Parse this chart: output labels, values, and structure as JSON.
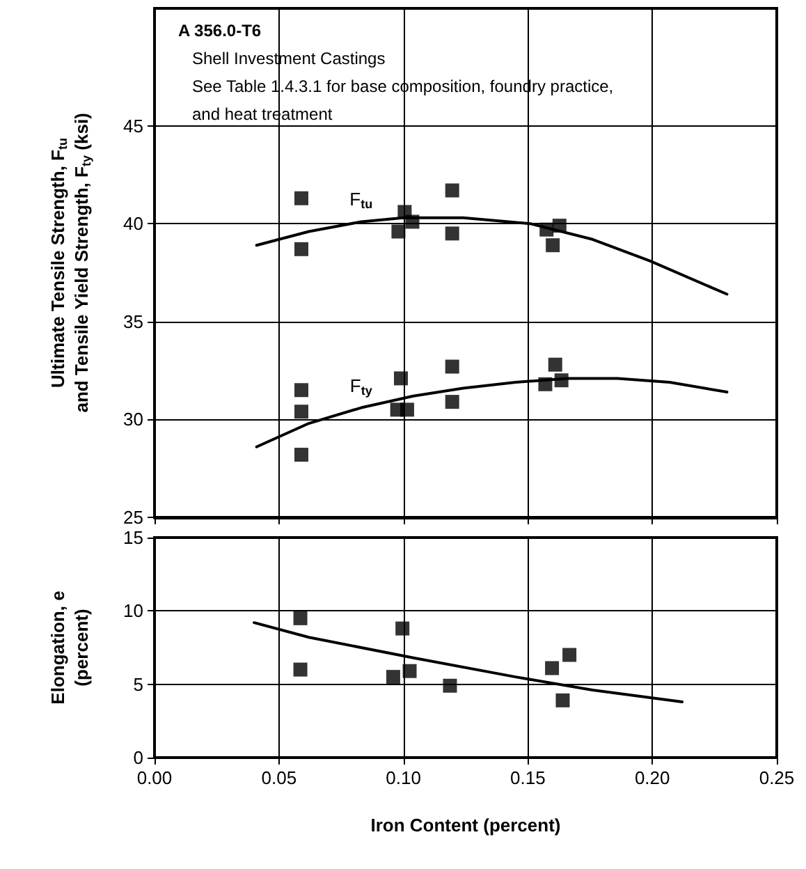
{
  "chart_data": [
    {
      "type": "scatter",
      "annotations": [
        "A 356.0-T6",
        "Shell Investment Castings",
        "See Table 1.4.3.1 for base composition, foundry practice, and heat treatment"
      ],
      "ylabel": "Ultimate Tensile Strength, F$_{tu}$\nand Tensile Yield Strength, F$_{ty}$ (ksi)",
      "xlim": [
        0,
        0.25
      ],
      "xticks": [
        0,
        0.05,
        0.1,
        0.15,
        0.2,
        0.25
      ],
      "ylim": [
        25,
        51
      ],
      "yticks": [
        25,
        30,
        35,
        40,
        45
      ],
      "grid": true,
      "tick_labels": "y",
      "marker": "square",
      "legend": false,
      "series": [
        {
          "color": "#000000",
          "x": [
            0.059,
            0.059,
            0.1005,
            0.098,
            0.1036,
            0.1196,
            0.1196,
            0.1575,
            0.1627,
            0.16
          ],
          "values": [
            41.3,
            38.7,
            40.6,
            39.6,
            40.1,
            41.7,
            39.5,
            39.7,
            39.9,
            38.9
          ]
        },
        {
          "color": "#000000",
          "x": [
            0.059,
            0.059,
            0.059,
            0.099,
            0.0975,
            0.1015,
            0.1196,
            0.1196,
            0.157,
            0.161,
            0.1635
          ],
          "values": [
            31.5,
            30.4,
            28.2,
            32.1,
            30.5,
            30.5,
            32.7,
            30.9,
            31.8,
            32.8,
            32.0
          ]
        },
        {
          "type": "line",
          "name": "F$_{tu}$",
          "color": "#000000",
          "marker": "none",
          "x": [
            0.041,
            0.062,
            0.083,
            0.1,
            0.124,
            0.151,
            0.176,
            0.199,
            0.23
          ],
          "values": [
            38.9,
            39.6,
            40.1,
            40.3,
            40.3,
            40.0,
            39.2,
            38.1,
            36.4
          ]
        },
        {
          "type": "line",
          "name": "F$_{ty}$",
          "color": "#000000",
          "marker": "none",
          "x": [
            0.041,
            0.062,
            0.083,
            0.104,
            0.124,
            0.145,
            0.166,
            0.186,
            0.207,
            0.23
          ],
          "values": [
            28.6,
            29.8,
            30.6,
            31.2,
            31.6,
            31.9,
            32.1,
            32.1,
            31.9,
            31.4
          ]
        }
      ]
    },
    {
      "type": "scatter",
      "xlabel": "Iron Content (percent)",
      "ylabel": "Elongation, e\n(percent)",
      "xlim": [
        0,
        0.25
      ],
      "xticks": [
        {
          "value": 0,
          "label": "0.00"
        },
        {
          "value": 0.05,
          "label": "0.05"
        },
        {
          "value": 0.1,
          "label": "0.10"
        },
        {
          "value": 0.15,
          "label": "0.15"
        },
        {
          "value": 0.2,
          "label": "0.20"
        },
        {
          "value": 0.25,
          "label": "0.25"
        }
      ],
      "ylim": [
        0,
        15
      ],
      "yticks": [
        0,
        5,
        10,
        15
      ],
      "grid": true,
      "marker": "square",
      "legend": false,
      "series": [
        {
          "color": "#000000",
          "x": [
            0.0586,
            0.0586,
            0.0996,
            0.0959,
            0.1025,
            0.1187,
            0.1597,
            0.1667,
            0.164
          ],
          "values": [
            9.5,
            6.0,
            8.8,
            5.5,
            5.9,
            4.9,
            6.1,
            7.0,
            3.9
          ]
        },
        {
          "type": "line",
          "color": "#000000",
          "marker": "none",
          "x": [
            0.04,
            0.062,
            0.104,
            0.145,
            0.176,
            0.212
          ],
          "values": [
            9.2,
            8.2,
            6.8,
            5.5,
            4.6,
            3.8
          ]
        }
      ]
    }
  ]
}
